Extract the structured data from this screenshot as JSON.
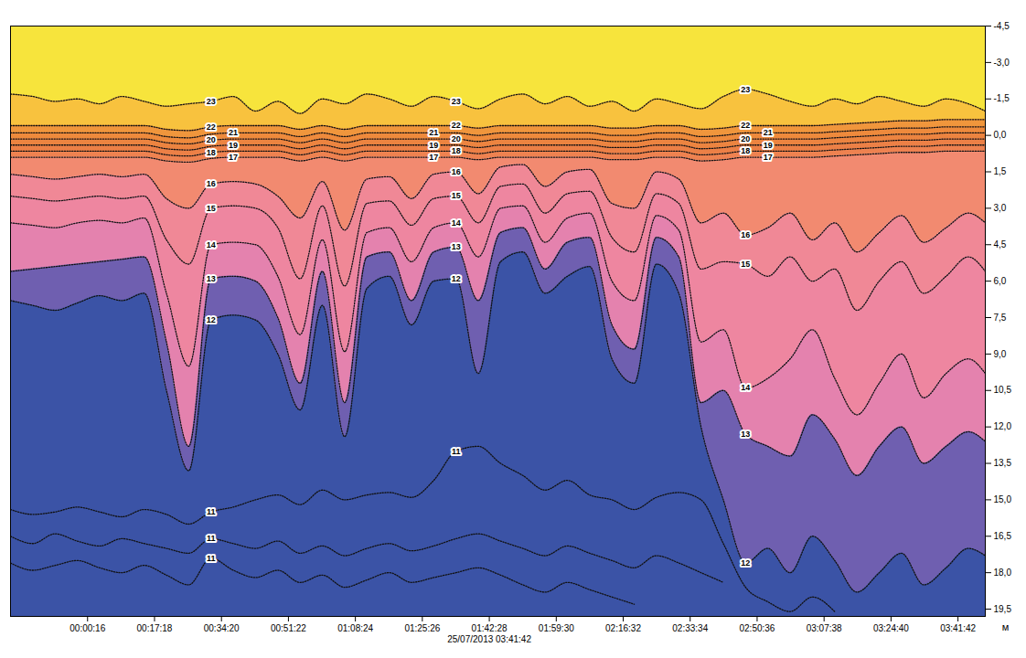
{
  "chart_data": {
    "type": "contour",
    "x": [
      -1160,
      -820,
      -480,
      -140,
      200,
      540,
      880,
      1220,
      1560,
      1900,
      2240,
      2580,
      2920,
      3260,
      3600,
      3940,
      4280,
      4620,
      4960,
      5300,
      5640,
      5980,
      6320,
      6660,
      7000,
      7340,
      7680,
      8020,
      8360,
      8700,
      9040,
      9380,
      9720,
      10060,
      10400,
      10740,
      11080,
      11420,
      11760,
      12100,
      12440,
      12780,
      13120,
      13460,
      13719
    ],
    "xlim": [
      -1160,
      13719
    ],
    "xticks": [
      {
        "value": 16,
        "label": "00:00:16"
      },
      {
        "value": 1038,
        "label": "00:17:18"
      },
      {
        "value": 2060,
        "label": "00:34:20"
      },
      {
        "value": 3082,
        "label": "00:51:22"
      },
      {
        "value": 4104,
        "label": "01:08:24"
      },
      {
        "value": 5126,
        "label": "01:25:26"
      },
      {
        "value": 6148,
        "label": "01:42:28"
      },
      {
        "value": 7170,
        "label": "01:59:30"
      },
      {
        "value": 8192,
        "label": "02:16:32"
      },
      {
        "value": 9214,
        "label": "02:33:34"
      },
      {
        "value": 10236,
        "label": "02:50:36"
      },
      {
        "value": 11258,
        "label": "03:07:38"
      },
      {
        "value": 12280,
        "label": "03:24:40"
      },
      {
        "value": 13302,
        "label": "03:41:42"
      }
    ],
    "ylim": [
      19.8,
      -4.5
    ],
    "yticks": [
      {
        "value": -4.5,
        "label": "-4,5"
      },
      {
        "value": -3,
        "label": "-3,0"
      },
      {
        "value": -1.5,
        "label": "-1,5"
      },
      {
        "value": 0,
        "label": "0,0"
      },
      {
        "value": 1.5,
        "label": "1,5"
      },
      {
        "value": 3,
        "label": "3,0"
      },
      {
        "value": 4.5,
        "label": "4,5"
      },
      {
        "value": 6,
        "label": "6,0"
      },
      {
        "value": 7.5,
        "label": "7,5"
      },
      {
        "value": 9,
        "label": "9,0"
      },
      {
        "value": 10.5,
        "label": "10,5"
      },
      {
        "value": 12,
        "label": "12,0"
      },
      {
        "value": 13.5,
        "label": "13,5"
      },
      {
        "value": 15,
        "label": "15,0"
      },
      {
        "value": 16.5,
        "label": "16,5"
      },
      {
        "value": 18,
        "label": "18,0"
      },
      {
        "value": 19.5,
        "label": "19,5"
      }
    ],
    "ylabel": "м",
    "date_label": {
      "text": "25/07/2013 03:41:42",
      "x": 6148
    },
    "color": "#111111",
    "line_style": "dotted",
    "colors": [
      "#f7e43c",
      "#f8c23e",
      "#f0963c",
      "#ee8a3c",
      "#ec8440",
      "#ec8046",
      "#ee8250",
      "#f28a70",
      "#f08896",
      "#ee86a0",
      "#e482ae",
      "#6f5fb0",
      "#3b53a6"
    ],
    "series": [
      {
        "name": "23",
        "values": [
          -1.7,
          -1.6,
          -1.4,
          -1.5,
          -1.3,
          -1.6,
          -1.4,
          -1.2,
          -1.3,
          -1.4,
          -1.6,
          -1.0,
          -1.4,
          -0.9,
          -1.5,
          -1.3,
          -1.7,
          -1.5,
          -1.2,
          -1.6,
          -1.4,
          -1.1,
          -1.5,
          -1.7,
          -1.3,
          -1.6,
          -1.2,
          -1.4,
          -1.0,
          -1.5,
          -1.3,
          -1.1,
          -1.6,
          -1.9,
          -1.7,
          -1.4,
          -1.2,
          -1.5,
          -1.3,
          -1.6,
          -1.4,
          -1.2,
          -1.5,
          -1.3,
          -1.0
        ]
      },
      {
        "name": "22",
        "values": [
          -0.4,
          -0.4,
          -0.4,
          -0.4,
          -0.4,
          -0.4,
          -0.4,
          -0.25,
          -0.2,
          -0.35,
          -0.4,
          -0.4,
          -0.4,
          -0.25,
          -0.4,
          -0.25,
          -0.4,
          -0.4,
          -0.4,
          -0.4,
          -0.4,
          -0.3,
          -0.4,
          -0.4,
          -0.4,
          -0.4,
          -0.4,
          -0.3,
          -0.3,
          -0.4,
          -0.4,
          -0.25,
          -0.3,
          -0.4,
          -0.4,
          -0.4,
          -0.4,
          -0.45,
          -0.5,
          -0.55,
          -0.6,
          -0.6,
          -0.65,
          -0.65,
          -0.65
        ]
      },
      {
        "name": "21",
        "values": [
          -0.1,
          -0.1,
          -0.1,
          -0.1,
          -0.1,
          -0.1,
          -0.1,
          0.05,
          0.1,
          -0.05,
          -0.1,
          -0.1,
          -0.1,
          0.05,
          -0.1,
          0.05,
          -0.1,
          -0.1,
          -0.1,
          -0.1,
          -0.1,
          0,
          -0.1,
          -0.1,
          -0.1,
          -0.1,
          -0.1,
          0,
          0,
          -0.1,
          -0.1,
          0.05,
          0,
          -0.1,
          -0.1,
          -0.1,
          -0.1,
          -0.15,
          -0.2,
          -0.25,
          -0.3,
          -0.3,
          -0.35,
          -0.35,
          -0.35
        ]
      },
      {
        "name": "20",
        "values": [
          0.15,
          0.15,
          0.15,
          0.15,
          0.15,
          0.15,
          0.15,
          0.3,
          0.35,
          0.2,
          0.15,
          0.15,
          0.15,
          0.3,
          0.15,
          0.3,
          0.15,
          0.15,
          0.15,
          0.15,
          0.15,
          0.25,
          0.15,
          0.15,
          0.15,
          0.15,
          0.15,
          0.25,
          0.25,
          0.15,
          0.15,
          0.3,
          0.25,
          0.15,
          0.15,
          0.15,
          0.15,
          0.1,
          0.05,
          0,
          -0.05,
          -0.05,
          -0.1,
          -0.1,
          -0.1
        ]
      },
      {
        "name": "19",
        "values": [
          0.4,
          0.4,
          0.4,
          0.4,
          0.4,
          0.4,
          0.4,
          0.55,
          0.6,
          0.45,
          0.4,
          0.4,
          0.4,
          0.55,
          0.4,
          0.55,
          0.4,
          0.4,
          0.4,
          0.4,
          0.4,
          0.5,
          0.4,
          0.4,
          0.4,
          0.4,
          0.4,
          0.5,
          0.5,
          0.4,
          0.4,
          0.55,
          0.5,
          0.4,
          0.4,
          0.4,
          0.4,
          0.35,
          0.3,
          0.25,
          0.2,
          0.2,
          0.15,
          0.15,
          0.15
        ]
      },
      {
        "name": "18",
        "values": [
          0.65,
          0.65,
          0.65,
          0.65,
          0.65,
          0.65,
          0.65,
          0.8,
          0.85,
          0.7,
          0.65,
          0.65,
          0.65,
          0.8,
          0.65,
          0.8,
          0.65,
          0.65,
          0.65,
          0.65,
          0.65,
          0.75,
          0.65,
          0.65,
          0.65,
          0.65,
          0.65,
          0.75,
          0.75,
          0.65,
          0.65,
          0.8,
          0.75,
          0.65,
          0.65,
          0.65,
          0.65,
          0.6,
          0.55,
          0.5,
          0.45,
          0.45,
          0.4,
          0.4,
          0.4
        ]
      },
      {
        "name": "17",
        "values": [
          0.9,
          0.9,
          0.9,
          0.9,
          0.9,
          0.9,
          0.9,
          1.05,
          1.1,
          0.95,
          0.9,
          0.9,
          0.9,
          1.05,
          0.9,
          1.05,
          0.9,
          0.9,
          0.9,
          0.9,
          0.9,
          1.0,
          0.9,
          0.9,
          0.9,
          0.9,
          0.9,
          1.0,
          1.0,
          0.9,
          0.9,
          1.05,
          1.0,
          0.9,
          0.9,
          0.9,
          0.9,
          0.85,
          0.8,
          0.75,
          0.7,
          0.7,
          0.65,
          0.65,
          0.65
        ]
      },
      {
        "name": "16",
        "values": [
          1.6,
          1.7,
          1.8,
          1.7,
          1.6,
          1.7,
          1.6,
          2.6,
          3.0,
          2.0,
          1.9,
          2.0,
          2.5,
          3.4,
          1.9,
          3.9,
          1.8,
          1.7,
          2.6,
          1.6,
          1.5,
          2.4,
          1.3,
          1.2,
          2.1,
          1.5,
          1.4,
          2.8,
          3.0,
          1.5,
          1.8,
          3.6,
          3.2,
          4.1,
          3.8,
          3.2,
          4.3,
          3.6,
          4.8,
          4.0,
          3.3,
          4.4,
          3.8,
          3.2,
          3.6
        ]
      },
      {
        "name": "15",
        "values": [
          2.5,
          2.6,
          2.7,
          2.6,
          2.5,
          2.6,
          2.5,
          4.3,
          5.3,
          3.0,
          2.9,
          3.0,
          3.8,
          5.9,
          2.9,
          6.2,
          2.8,
          2.7,
          3.7,
          2.6,
          2.5,
          3.6,
          2.1,
          2.0,
          3.2,
          2.4,
          2.3,
          4.2,
          4.8,
          2.4,
          2.8,
          5.5,
          5.2,
          5.3,
          5.8,
          5.0,
          6.0,
          5.5,
          7.2,
          6.0,
          5.2,
          6.5,
          5.8,
          5.0,
          5.6
        ]
      },
      {
        "name": "14",
        "values": [
          3.6,
          3.7,
          3.8,
          3.6,
          3.5,
          3.6,
          3.4,
          6.5,
          9.5,
          4.5,
          4.4,
          4.5,
          5.8,
          8.2,
          4.3,
          8.9,
          4.0,
          3.8,
          5.2,
          3.8,
          3.6,
          5.0,
          3.0,
          2.9,
          4.4,
          3.4,
          3.2,
          6.0,
          6.8,
          3.3,
          3.9,
          8.5,
          8.0,
          10.4,
          10.0,
          9.2,
          8.0,
          10.0,
          11.5,
          10.2,
          9.0,
          10.8,
          9.8,
          9.2,
          9.8
        ]
      },
      {
        "name": "13",
        "values": [
          5.6,
          5.5,
          5.4,
          5.3,
          5.2,
          5.1,
          5.0,
          8.5,
          12.8,
          5.9,
          5.8,
          6.0,
          7.5,
          10.2,
          5.6,
          11.0,
          5.0,
          4.8,
          6.8,
          4.8,
          4.6,
          6.8,
          4.0,
          3.8,
          5.5,
          4.4,
          4.2,
          7.8,
          8.8,
          4.2,
          5.0,
          11.0,
          10.5,
          12.3,
          12.8,
          13.2,
          11.5,
          12.5,
          14.0,
          12.8,
          12.0,
          13.5,
          12.8,
          12.2,
          12.6
        ]
      },
      {
        "name": "12",
        "values": [
          6.8,
          7.0,
          7.2,
          6.9,
          6.6,
          6.8,
          6.5,
          10.5,
          13.8,
          7.6,
          7.4,
          7.6,
          9.0,
          11.3,
          7.0,
          12.4,
          6.3,
          5.8,
          7.8,
          6.0,
          5.9,
          9.8,
          5.2,
          4.8,
          6.5,
          5.8,
          5.4,
          9.2,
          10.2,
          5.3,
          6.5,
          12.0,
          15.0,
          17.6,
          17.0,
          18.0,
          16.5,
          17.5,
          18.8,
          18.0,
          17.2,
          18.5,
          17.8,
          17.0,
          17.3
        ]
      },
      {
        "name": "11",
        "values": [
          15.4,
          15.6,
          15.5,
          15.3,
          15.5,
          15.7,
          15.4,
          15.6,
          16.0,
          15.5,
          15.3,
          15.0,
          14.8,
          15.2,
          14.6,
          15.0,
          14.8,
          14.7,
          14.9,
          14.2,
          13.0,
          12.8,
          13.5,
          14.0,
          14.6,
          14.2,
          14.8,
          15.0,
          15.4,
          14.9,
          14.7,
          15.0,
          16.8,
          18.6,
          19.2,
          19.6,
          19.0,
          19.6,
          null,
          null,
          null,
          null,
          null,
          null,
          null
        ]
      },
      {
        "name": "11",
        "values": [
          16.5,
          16.8,
          16.4,
          16.7,
          16.9,
          16.6,
          16.8,
          17.0,
          17.2,
          16.6,
          16.8,
          17.0,
          16.7,
          17.2,
          16.9,
          17.3,
          17.0,
          16.8,
          17.1,
          16.9,
          16.6,
          16.4,
          16.7,
          17.0,
          17.3,
          16.9,
          17.2,
          17.5,
          17.8,
          17.3,
          17.6,
          18.0,
          18.4,
          null,
          null,
          null,
          null,
          null,
          null,
          null,
          null,
          null,
          null,
          null,
          null
        ]
      },
      {
        "name": "11",
        "values": [
          17.6,
          17.9,
          17.7,
          17.5,
          17.8,
          18.0,
          17.7,
          18.1,
          18.5,
          17.4,
          17.9,
          18.2,
          17.9,
          18.4,
          18.1,
          18.6,
          18.3,
          18.0,
          18.4,
          18.2,
          18.0,
          17.8,
          18.1,
          18.5,
          18.8,
          18.4,
          18.7,
          19.0,
          19.3,
          null,
          null,
          null,
          null,
          null,
          null,
          null,
          null,
          null,
          null,
          null,
          null,
          null,
          null,
          null,
          null
        ]
      }
    ],
    "annotations": [
      {
        "text": "23",
        "x": 1900,
        "y": -1.4
      },
      {
        "text": "22",
        "x": 1900,
        "y": -0.35
      },
      {
        "text": "21",
        "x": 2240,
        "y": -0.1
      },
      {
        "text": "20",
        "x": 1900,
        "y": 0.2
      },
      {
        "text": "19",
        "x": 2240,
        "y": 0.4
      },
      {
        "text": "18",
        "x": 1900,
        "y": 0.7
      },
      {
        "text": "17",
        "x": 2240,
        "y": 0.9
      },
      {
        "text": "16",
        "x": 1900,
        "y": 2.0
      },
      {
        "text": "15",
        "x": 1900,
        "y": 3.0
      },
      {
        "text": "14",
        "x": 1900,
        "y": 4.5
      },
      {
        "text": "13",
        "x": 1900,
        "y": 5.9
      },
      {
        "text": "12",
        "x": 1900,
        "y": 7.6
      },
      {
        "text": "11",
        "x": 1900,
        "y": 15.5
      },
      {
        "text": "11",
        "x": 1900,
        "y": 16.6
      },
      {
        "text": "11",
        "x": 1900,
        "y": 17.4
      },
      {
        "text": "23",
        "x": 5640,
        "y": -1.4
      },
      {
        "text": "22",
        "x": 5640,
        "y": -0.4
      },
      {
        "text": "21",
        "x": 5300,
        "y": -0.1
      },
      {
        "text": "20",
        "x": 5640,
        "y": 0.15
      },
      {
        "text": "19",
        "x": 5300,
        "y": 0.4
      },
      {
        "text": "18",
        "x": 5640,
        "y": 0.65
      },
      {
        "text": "17",
        "x": 5300,
        "y": 0.9
      },
      {
        "text": "16",
        "x": 5640,
        "y": 1.5
      },
      {
        "text": "15",
        "x": 5640,
        "y": 2.5
      },
      {
        "text": "14",
        "x": 5640,
        "y": 3.6
      },
      {
        "text": "13",
        "x": 5640,
        "y": 4.6
      },
      {
        "text": "12",
        "x": 5640,
        "y": 5.9
      },
      {
        "text": "11",
        "x": 5640,
        "y": 13.0
      },
      {
        "text": "23",
        "x": 10060,
        "y": -1.9
      },
      {
        "text": "22",
        "x": 10060,
        "y": -0.4
      },
      {
        "text": "21",
        "x": 10400,
        "y": -0.1
      },
      {
        "text": "20",
        "x": 10060,
        "y": 0.15
      },
      {
        "text": "19",
        "x": 10400,
        "y": 0.4
      },
      {
        "text": "18",
        "x": 10060,
        "y": 0.65
      },
      {
        "text": "17",
        "x": 10400,
        "y": 0.9
      },
      {
        "text": "16",
        "x": 10060,
        "y": 4.1
      },
      {
        "text": "15",
        "x": 10060,
        "y": 5.3
      },
      {
        "text": "14",
        "x": 10060,
        "y": 10.4
      },
      {
        "text": "13",
        "x": 10060,
        "y": 12.3
      },
      {
        "text": "12",
        "x": 10060,
        "y": 17.6
      }
    ]
  }
}
